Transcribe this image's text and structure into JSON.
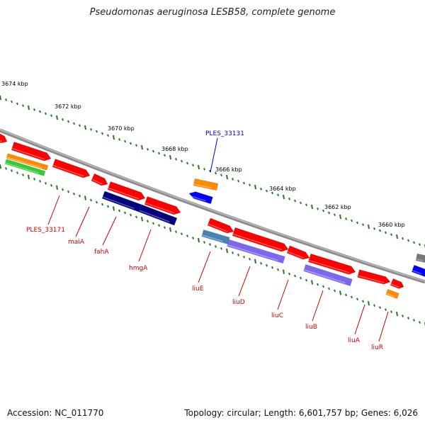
{
  "title": "Pseudomonas aeruginosa LESB58, complete genome",
  "footer": {
    "accession": "Accession: NC_011770",
    "summary": "Topology: circular; Length: 6,601,757 bp; Genes: 6,026"
  },
  "colors": {
    "backbone": "#8c8c8c",
    "tick": "#1f7a1f",
    "kbp_label": "#000000",
    "feature_label": "#cc0000",
    "highlight_label": "#0000cc",
    "red": "#ff0000",
    "orange": "#ff8c00",
    "green": "#33cc33",
    "navy": "#000080",
    "blue": "#0000ff",
    "steelblue": "#4682b4",
    "slateblue": "#7b68ee",
    "gray": "#777777"
  },
  "scale_labels": [
    "3674 kbp",
    "3672 kbp",
    "3670 kbp",
    "3668 kbp",
    "3666 kbp",
    "3664 kbp",
    "3662 kbp",
    "3660 kbp"
  ],
  "feature_labels": [
    {
      "text": "PLES_33131",
      "color": "blue"
    },
    {
      "text": "PLES_33171",
      "color": "red"
    },
    {
      "text": "maiA",
      "color": "red"
    },
    {
      "text": "fahA",
      "color": "red"
    },
    {
      "text": "hmgA",
      "color": "red"
    },
    {
      "text": "liuE",
      "color": "red"
    },
    {
      "text": "liuD",
      "color": "red"
    },
    {
      "text": "liuC",
      "color": "red"
    },
    {
      "text": "liuB",
      "color": "red"
    },
    {
      "text": "liuA",
      "color": "red"
    },
    {
      "text": "liuR",
      "color": "red"
    }
  ]
}
